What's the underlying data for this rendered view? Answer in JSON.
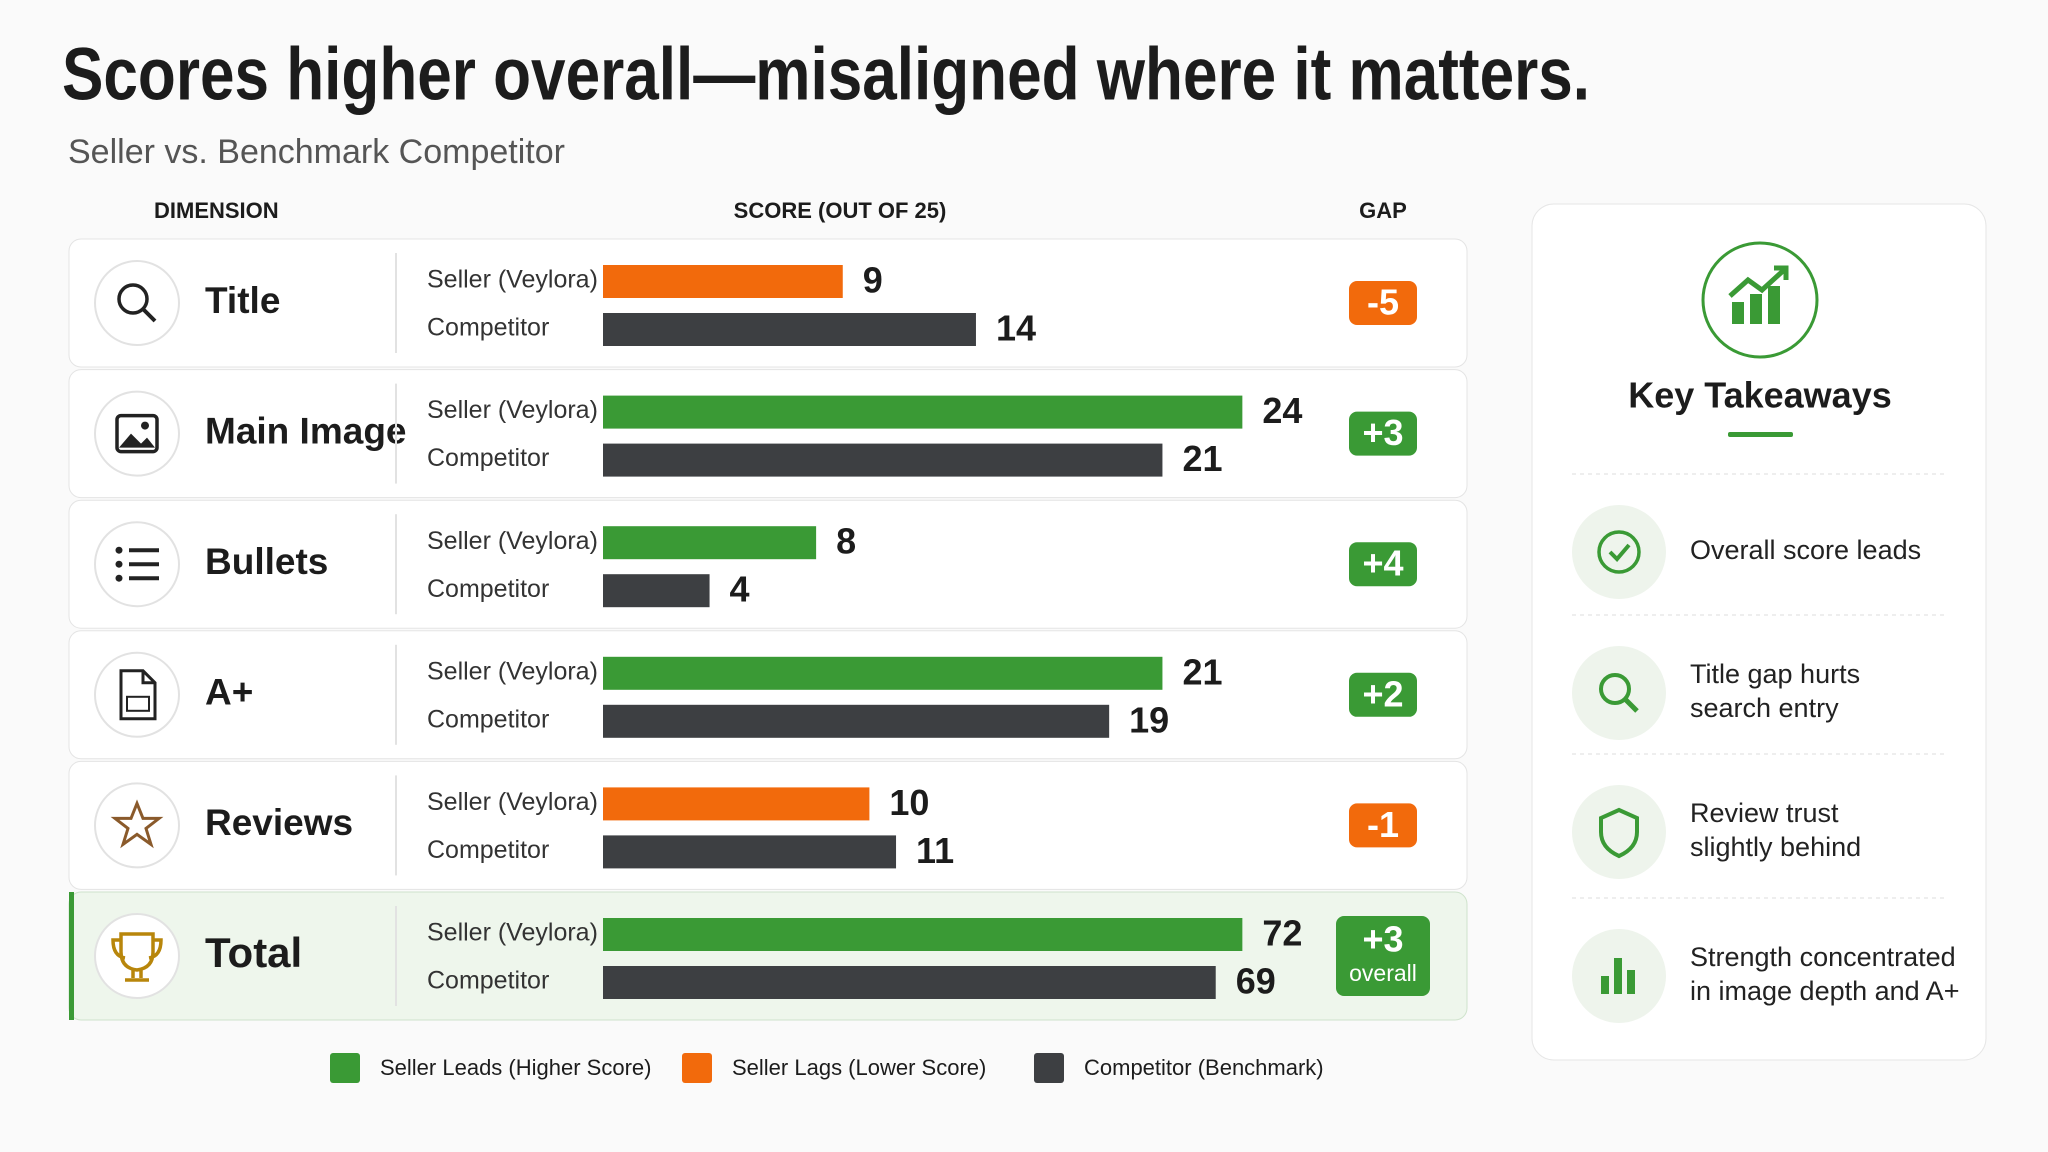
{
  "title": "Scores higher overall—misaligned where it matters.",
  "subtitle": "Seller vs. Benchmark Competitor",
  "table": {
    "headers": [
      "DIMENSION",
      "SCORE (OUT OF 25)",
      "GAP"
    ],
    "series_labels": [
      "Seller (Veylora)",
      "Competitor"
    ],
    "competitor_color": "#3d3f42",
    "rows": [
      {
        "dimension": "Title",
        "seller": 9,
        "competitor": 14,
        "seller_color": "#f26a0c",
        "gap": "-5",
        "xlim": [
          0,
          25
        ]
      },
      {
        "dimension": "Main Image",
        "seller": 24,
        "competitor": 21,
        "seller_color": "#3a9a35",
        "gap": "+3",
        "xlim": [
          0,
          25
        ]
      },
      {
        "dimension": "Bullets",
        "seller": 8,
        "competitor": 4,
        "seller_color": "#3a9a35",
        "gap": "+4",
        "xlim": [
          0,
          25
        ]
      },
      {
        "dimension": "A+",
        "seller": 21,
        "competitor": 19,
        "seller_color": "#3a9a35",
        "gap": "+2",
        "xlim": [
          0,
          25
        ]
      },
      {
        "dimension": "Reviews",
        "seller": 10,
        "competitor": 11,
        "seller_color": "#f26a0c",
        "gap": "-1",
        "xlim": [
          0,
          25
        ]
      },
      {
        "dimension": "Total",
        "seller": 72,
        "competitor": 69,
        "seller_color": "#3a9a35",
        "gap": "+3",
        "gap_note": "overall",
        "xlim": [
          0,
          75
        ]
      }
    ]
  },
  "legend": [
    {
      "label": "Seller Leads (Higher Score)",
      "color": "#3a9a35"
    },
    {
      "label": "Seller Lags (Lower Score)",
      "color": "#f26a0c"
    },
    {
      "label": "Competitor (Benchmark)",
      "color": "#3d3f42"
    }
  ],
  "takeaways": {
    "title": "Key Takeaways",
    "items": [
      [
        "Overall score leads"
      ],
      [
        "Title gap hurts",
        "search entry"
      ],
      [
        "Review trust",
        "slightly behind"
      ],
      [
        "Strength concentrated",
        "in image depth and A+"
      ]
    ]
  }
}
